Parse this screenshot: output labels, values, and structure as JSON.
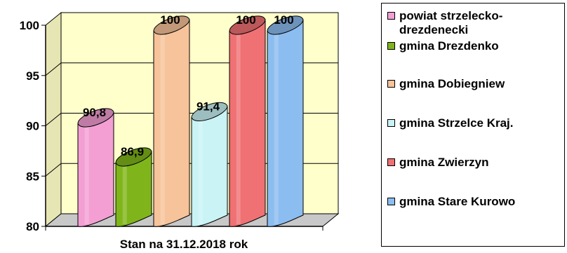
{
  "chart_data": {
    "type": "bar",
    "xlabel": "Stan na 31.12.2018 rok",
    "ylim": [
      80,
      100
    ],
    "yticks": [
      "80",
      "85",
      "90",
      "95",
      "100"
    ],
    "series": [
      {
        "name": "powiat strzelecko-drezdenecki",
        "value": 90.8,
        "label": "90,8",
        "color": "#F39FD4"
      },
      {
        "name": "gmina Drezdenko",
        "value": 86.9,
        "label": "86,9",
        "color": "#7FB51A"
      },
      {
        "name": "gmina Dobiegniew",
        "value": 100,
        "label": "100",
        "color": "#F7C39A"
      },
      {
        "name": "gmina Strzelce Kraj.",
        "value": 91.4,
        "label": "91,4",
        "color": "#C9F3F5"
      },
      {
        "name": "gmina Zwierzyn",
        "value": 100,
        "label": "100",
        "color": "#F07173"
      },
      {
        "name": "gmina Stare Kurowo",
        "value": 100,
        "label": "100",
        "color": "#8CBDF0"
      }
    ],
    "legend_position": "right"
  },
  "legend": {
    "items": [
      {
        "line1": "powiat strzelecko-",
        "line2": "drezdenecki"
      },
      {
        "line1": "gmina Drezdenko"
      },
      {
        "line1": "gmina Dobiegniew"
      },
      {
        "line1": "gmina Strzelce Kraj."
      },
      {
        "line1": "gmina Zwierzyn"
      },
      {
        "line1": "gmina Stare Kurowo"
      }
    ]
  }
}
